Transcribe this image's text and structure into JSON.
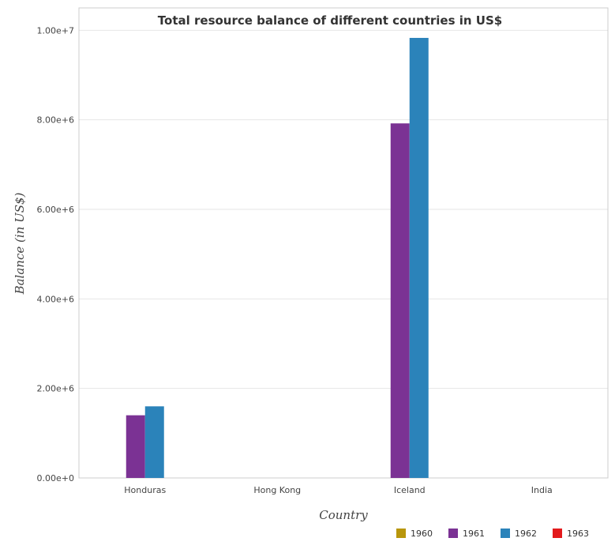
{
  "chart_data": {
    "type": "bar",
    "title": "Total resource balance of different countries in US$",
    "xlabel": "Country",
    "ylabel": "Balance (in US$)",
    "categories": [
      "Honduras",
      "Hong Kong",
      "Iceland",
      "India"
    ],
    "series": [
      {
        "name": "1960",
        "color": "#b8960c",
        "values": [
          0,
          0,
          0,
          0
        ]
      },
      {
        "name": "1961",
        "color": "#7b3294",
        "values": [
          1400000,
          0,
          7920000,
          0
        ]
      },
      {
        "name": "1962",
        "color": "#2b83ba",
        "values": [
          1600000,
          0,
          9830000,
          0
        ]
      },
      {
        "name": "1963",
        "color": "#e31a1c",
        "values": [
          0,
          0,
          0,
          0
        ]
      }
    ],
    "ylim": [
      0,
      10500000
    ],
    "yticks": [
      0,
      2000000,
      4000000,
      6000000,
      8000000,
      10000000
    ],
    "ytick_labels": [
      "0.00e+0",
      "2.00e+6",
      "4.00e+6",
      "6.00e+6",
      "8.00e+6",
      "1.00e+7"
    ],
    "grid": true,
    "legend_position": "bottom-right"
  }
}
